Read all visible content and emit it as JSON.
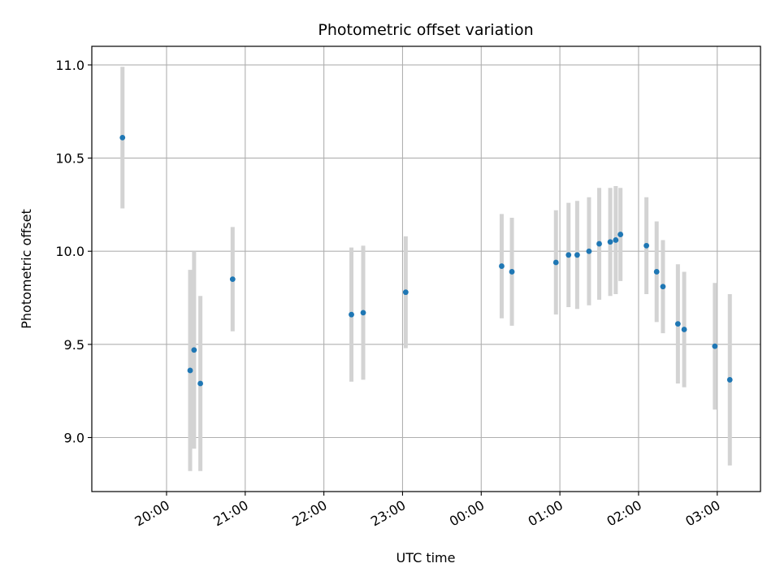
{
  "chart_data": {
    "type": "scatter",
    "title": "Photometric offset variation",
    "xlabel": "UTC time",
    "ylabel": "Photometric offset",
    "grid": true,
    "x_unit": "hours since 20:00 UTC",
    "xlim": [
      -0.95,
      7.55
    ],
    "ylim": [
      8.71,
      11.1
    ],
    "x_ticks": [
      {
        "x": 0,
        "label": "20:00"
      },
      {
        "x": 1,
        "label": "21:00"
      },
      {
        "x": 2,
        "label": "22:00"
      },
      {
        "x": 3,
        "label": "23:00"
      },
      {
        "x": 4,
        "label": "00:00"
      },
      {
        "x": 5,
        "label": "01:00"
      },
      {
        "x": 6,
        "label": "02:00"
      },
      {
        "x": 7,
        "label": "03:00"
      }
    ],
    "y_ticks": [
      {
        "y": 9.0,
        "label": "9.0"
      },
      {
        "y": 9.5,
        "label": "9.5"
      },
      {
        "y": 10.0,
        "label": "10.0"
      },
      {
        "y": 10.5,
        "label": "10.5"
      },
      {
        "y": 11.0,
        "label": "11.0"
      }
    ],
    "marker_color": "#1f77b4",
    "errorbar_color": "#d3d3d3",
    "points": [
      {
        "x": -0.56,
        "y": 10.61,
        "err": 0.38
      },
      {
        "x": 0.3,
        "y": 9.36,
        "err": 0.54
      },
      {
        "x": 0.35,
        "y": 9.47,
        "err": 0.53
      },
      {
        "x": 0.43,
        "y": 9.29,
        "err": 0.47
      },
      {
        "x": 0.84,
        "y": 9.85,
        "err": 0.28
      },
      {
        "x": 2.35,
        "y": 9.66,
        "err": 0.36
      },
      {
        "x": 2.5,
        "y": 9.67,
        "err": 0.36
      },
      {
        "x": 3.04,
        "y": 9.78,
        "err": 0.3
      },
      {
        "x": 4.26,
        "y": 9.92,
        "err": 0.28
      },
      {
        "x": 4.39,
        "y": 9.89,
        "err": 0.29
      },
      {
        "x": 4.95,
        "y": 9.94,
        "err": 0.28
      },
      {
        "x": 5.11,
        "y": 9.98,
        "err": 0.28
      },
      {
        "x": 5.22,
        "y": 9.98,
        "err": 0.29
      },
      {
        "x": 5.37,
        "y": 10.0,
        "err": 0.29
      },
      {
        "x": 5.5,
        "y": 10.04,
        "err": 0.3
      },
      {
        "x": 5.64,
        "y": 10.05,
        "err": 0.29
      },
      {
        "x": 5.71,
        "y": 10.06,
        "err": 0.29
      },
      {
        "x": 5.77,
        "y": 10.09,
        "err": 0.25
      },
      {
        "x": 6.1,
        "y": 10.03,
        "err": 0.26
      },
      {
        "x": 6.23,
        "y": 9.89,
        "err": 0.27
      },
      {
        "x": 6.31,
        "y": 9.81,
        "err": 0.25
      },
      {
        "x": 6.5,
        "y": 9.61,
        "err": 0.32
      },
      {
        "x": 6.58,
        "y": 9.58,
        "err": 0.31
      },
      {
        "x": 6.97,
        "y": 9.49,
        "err": 0.34
      },
      {
        "x": 7.16,
        "y": 9.31,
        "err": 0.46
      }
    ]
  }
}
